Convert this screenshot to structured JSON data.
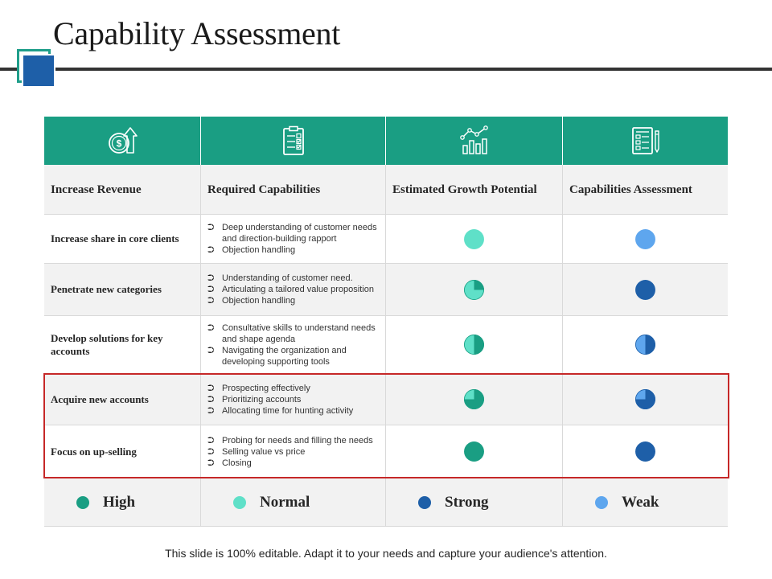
{
  "title": "Capability Assessment",
  "colors": {
    "high": "#1a9e83",
    "normal": "#5fe0c8",
    "strong": "#1e5fa8",
    "weak": "#5ea6ee",
    "header_band": "#1a9e83",
    "highlight_border": "#c62828"
  },
  "icons": [
    "dollar-growth-icon",
    "checklist-icon",
    "growth-chart-icon",
    "report-pencil-icon"
  ],
  "headers": {
    "col1": "Increase Revenue",
    "col2": "Required Capabilities",
    "col3": "Estimated Growth Potential",
    "col4": "Capabilities Assessment"
  },
  "rows": [
    {
      "label": "Increase share in core clients",
      "capabilities": [
        "Deep understanding of customer needs and direction-building rapport",
        "Objection handling"
      ],
      "growth": {
        "color": "normal",
        "fill": 1.0
      },
      "assessment": {
        "color": "weak",
        "fill": 1.0
      }
    },
    {
      "label": "Penetrate new categories",
      "capabilities": [
        "Understanding of customer need.",
        "Articulating a tailored value proposition",
        "Objection handling"
      ],
      "growth": {
        "color": "normal",
        "fill": 0.25
      },
      "assessment": {
        "color": "strong",
        "fill": 1.0
      }
    },
    {
      "label": "Develop solutions for key accounts",
      "capabilities": [
        "Consultative skills to understand needs and shape agenda",
        "Navigating the organization and developing supporting tools"
      ],
      "growth": {
        "color": "normal",
        "fill": 0.5
      },
      "assessment": {
        "color": "weak",
        "fill": 0.5
      }
    },
    {
      "label": "Acquire new accounts",
      "capabilities": [
        "Prospecting effectively",
        "Prioritizing accounts",
        "Allocating time for hunting activity"
      ],
      "growth": {
        "color": "normal",
        "fill": 0.75
      },
      "assessment": {
        "color": "weak",
        "fill": 0.75
      }
    },
    {
      "label": "Focus on up-selling",
      "capabilities": [
        "Probing for needs and filling the needs",
        "Selling value vs price",
        "Closing"
      ],
      "growth": {
        "color": "high",
        "fill": 1.0
      },
      "assessment": {
        "color": "strong",
        "fill": 1.0
      }
    }
  ],
  "legend": [
    {
      "label": "High",
      "color": "#1a9e83"
    },
    {
      "label": "Normal",
      "color": "#5fe0c8"
    },
    {
      "label": "Strong",
      "color": "#1e5fa8"
    },
    {
      "label": "Weak",
      "color": "#5ea6ee"
    }
  ],
  "footer": "This slide is 100% editable. Adapt it to your needs and capture your audience's attention."
}
